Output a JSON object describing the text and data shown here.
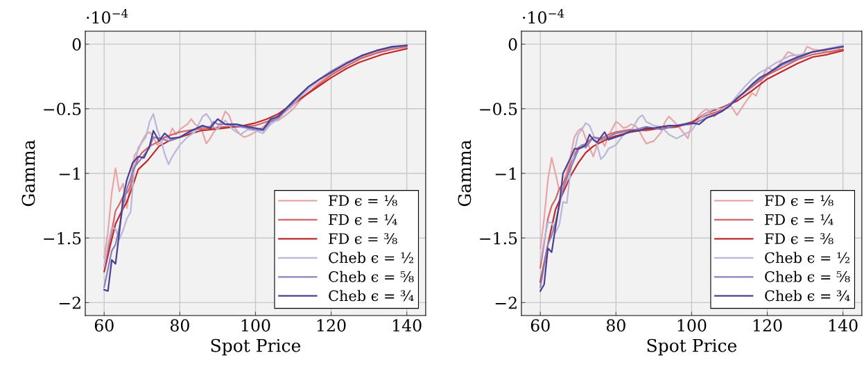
{
  "chart_data": [
    {
      "type": "line",
      "xlabel": "Spot Price",
      "ylabel": "Gamma",
      "annotations": [
        "·10$^{−4}$"
      ],
      "xlim": [
        55,
        145
      ],
      "ylim": [
        -2.1,
        0.1
      ],
      "xticks": [
        60,
        80,
        100,
        120,
        140
      ],
      "yticks": [
        {
          "value": -2,
          "label": "−2"
        },
        {
          "value": -1.5,
          "label": "−1.5"
        },
        {
          "value": -1,
          "label": "−1"
        },
        {
          "value": -0.5,
          "label": "−0.5"
        },
        0
      ],
      "grid": true,
      "legend": "lower right",
      "line_style": "solid",
      "marker": "none",
      "series": [
        {
          "name": "FD ϵ = ¹⁄₈",
          "color": "#e8a5a8",
          "x": [
            60,
            61,
            62,
            63,
            64,
            65,
            66,
            67,
            68,
            69,
            70,
            71,
            72,
            73,
            74,
            75,
            76,
            77,
            78,
            79,
            80,
            82,
            83,
            84,
            85,
            86,
            87,
            88,
            89,
            90,
            91,
            92,
            93,
            94,
            96,
            97,
            98,
            100,
            102,
            104,
            106,
            108,
            110,
            112,
            114,
            116,
            118,
            120,
            124,
            128,
            132,
            136,
            140
          ],
          "values": [
            -1.65,
            -1.45,
            -1.15,
            -0.96,
            -1.14,
            -1.08,
            -1.27,
            -1.05,
            -0.86,
            -0.82,
            -0.75,
            -0.7,
            -0.68,
            -0.72,
            -0.78,
            -0.76,
            -0.72,
            -0.73,
            -0.65,
            -0.7,
            -0.66,
            -0.62,
            -0.58,
            -0.62,
            -0.64,
            -0.68,
            -0.77,
            -0.73,
            -0.68,
            -0.64,
            -0.6,
            -0.52,
            -0.55,
            -0.63,
            -0.7,
            -0.72,
            -0.71,
            -0.68,
            -0.64,
            -0.6,
            -0.59,
            -0.55,
            -0.5,
            -0.43,
            -0.38,
            -0.32,
            -0.27,
            -0.23,
            -0.15,
            -0.1,
            -0.06,
            -0.035,
            -0.02
          ]
        },
        {
          "name": "FD ϵ = ¹⁄₄",
          "color": "#d46468",
          "x": [
            60,
            62,
            63,
            64,
            65,
            66,
            67,
            68,
            69,
            70,
            72,
            74,
            76,
            78,
            80,
            84,
            88,
            92,
            96,
            100,
            104,
            108,
            112,
            116,
            120,
            124,
            128,
            132,
            136,
            140
          ],
          "values": [
            -1.72,
            -1.45,
            -1.29,
            -1.24,
            -1.18,
            -1.15,
            -1.1,
            -0.96,
            -0.88,
            -0.84,
            -0.79,
            -0.76,
            -0.72,
            -0.7,
            -0.68,
            -0.66,
            -0.65,
            -0.64,
            -0.64,
            -0.63,
            -0.59,
            -0.52,
            -0.42,
            -0.33,
            -0.24,
            -0.17,
            -0.11,
            -0.07,
            -0.04,
            -0.02
          ]
        },
        {
          "name": "FD ϵ = ³⁄₈",
          "color": "#c0282a",
          "x": [
            60,
            61.5,
            63,
            64.5,
            66,
            67.5,
            69,
            71.5,
            74.5,
            77,
            80,
            85.5,
            91.5,
            96,
            100,
            103,
            106,
            112,
            116,
            120,
            124,
            127.5,
            133.5,
            140
          ],
          "values": [
            -1.76,
            -1.57,
            -1.39,
            -1.3,
            -1.22,
            -1.1,
            -0.97,
            -0.9,
            -0.79,
            -0.75,
            -0.72,
            -0.67,
            -0.65,
            -0.635,
            -0.61,
            -0.58,
            -0.54,
            -0.42,
            -0.34,
            -0.26,
            -0.19,
            -0.14,
            -0.08,
            -0.035
          ]
        },
        {
          "name": "Cheb ϵ = ¹⁄₂",
          "color": "#bab6da",
          "x": [
            60,
            61,
            62,
            63,
            64,
            65,
            66,
            67,
            68,
            69,
            70,
            71,
            72,
            73,
            74,
            75,
            76,
            77,
            78,
            80,
            82,
            84,
            86,
            87,
            88,
            89,
            90,
            92,
            94,
            96,
            98,
            100,
            102,
            104,
            106,
            108,
            110,
            112,
            114,
            116,
            118,
            120,
            124,
            128,
            132,
            136,
            140
          ],
          "values": [
            -1.72,
            -1.55,
            -1.42,
            -1.43,
            -1.51,
            -1.44,
            -1.35,
            -1.3,
            -0.94,
            -0.8,
            -0.76,
            -0.72,
            -0.6,
            -0.54,
            -0.66,
            -0.74,
            -0.85,
            -0.93,
            -0.87,
            -0.78,
            -0.72,
            -0.68,
            -0.56,
            -0.54,
            -0.58,
            -0.64,
            -0.66,
            -0.59,
            -0.66,
            -0.7,
            -0.66,
            -0.67,
            -0.69,
            -0.62,
            -0.58,
            -0.52,
            -0.47,
            -0.4,
            -0.35,
            -0.3,
            -0.25,
            -0.21,
            -0.14,
            -0.09,
            -0.05,
            -0.03,
            -0.01
          ]
        },
        {
          "name": "Cheb ϵ = ⁵⁄₈",
          "color": "#8a80bd",
          "x": [
            60,
            62,
            63,
            64,
            65,
            66,
            68,
            70,
            72,
            73,
            75,
            77,
            80,
            84,
            86,
            88,
            89,
            90,
            92,
            94,
            96,
            100,
            102,
            104,
            106,
            110,
            114,
            120,
            124,
            128,
            132,
            136,
            140
          ],
          "values": [
            -1.88,
            -1.6,
            -1.55,
            -1.42,
            -1.25,
            -1.12,
            -0.95,
            -0.88,
            -0.8,
            -0.72,
            -0.73,
            -0.75,
            -0.72,
            -0.66,
            -0.64,
            -0.64,
            -0.6,
            -0.62,
            -0.62,
            -0.63,
            -0.64,
            -0.66,
            -0.67,
            -0.6,
            -0.57,
            -0.45,
            -0.33,
            -0.21,
            -0.15,
            -0.09,
            -0.05,
            -0.025,
            -0.01
          ]
        },
        {
          "name": "Cheb ϵ = ³⁄₄",
          "color": "#4b3f92",
          "x": [
            60,
            61,
            62,
            63,
            64,
            65,
            66,
            67.5,
            69,
            70.5,
            72,
            73,
            74.5,
            76,
            77.5,
            80,
            83,
            86,
            88,
            90,
            92,
            95,
            98,
            100,
            102,
            104,
            106,
            110,
            114,
            117,
            120,
            124,
            128,
            132,
            136,
            140
          ],
          "values": [
            -1.9,
            -1.91,
            -1.67,
            -1.7,
            -1.46,
            -1.19,
            -1.05,
            -0.92,
            -0.87,
            -0.88,
            -0.79,
            -0.67,
            -0.75,
            -0.69,
            -0.73,
            -0.72,
            -0.67,
            -0.63,
            -0.65,
            -0.58,
            -0.62,
            -0.62,
            -0.64,
            -0.65,
            -0.66,
            -0.58,
            -0.56,
            -0.44,
            -0.33,
            -0.27,
            -0.22,
            -0.15,
            -0.09,
            -0.05,
            -0.02,
            -0.01
          ]
        }
      ]
    },
    {
      "type": "line",
      "xlabel": "Spot Price",
      "ylabel": "Gamma",
      "annotations": [
        "·10$^{−4}$"
      ],
      "xlim": [
        55,
        145
      ],
      "ylim": [
        -2.1,
        0.1
      ],
      "xticks": [
        60,
        80,
        100,
        120,
        140
      ],
      "yticks": [
        {
          "value": -2,
          "label": "−2"
        },
        {
          "value": -1.5,
          "label": "−1.5"
        },
        {
          "value": -1,
          "label": "−1"
        },
        {
          "value": -0.5,
          "label": "−0.5"
        },
        0
      ],
      "grid": true,
      "legend": "lower right",
      "line_style": "solid",
      "marker": "none",
      "series": [
        {
          "name": "FD ϵ = ¹⁄₈",
          "color": "#e8a5a8",
          "x": [
            60,
            61,
            62,
            63,
            64,
            65,
            66,
            67,
            68,
            69,
            70,
            71,
            72,
            73,
            74,
            75,
            76,
            77,
            78,
            80,
            81,
            82,
            83,
            84,
            85,
            86,
            87,
            88,
            90,
            92,
            93,
            94,
            96,
            98,
            99,
            100,
            102,
            103,
            104,
            106,
            108,
            110,
            112,
            114,
            116,
            117,
            118,
            119,
            120,
            122,
            124,
            125.5,
            127,
            129,
            130.5,
            132,
            134.5,
            137,
            139,
            140
          ],
          "values": [
            -1.58,
            -1.35,
            -1.05,
            -0.88,
            -1.0,
            -1.13,
            -1.09,
            -0.98,
            -0.86,
            -0.72,
            -0.67,
            -0.65,
            -0.73,
            -0.8,
            -0.87,
            -0.78,
            -0.73,
            -0.79,
            -0.71,
            -0.6,
            -0.62,
            -0.65,
            -0.64,
            -0.62,
            -0.63,
            -0.66,
            -0.72,
            -0.77,
            -0.75,
            -0.68,
            -0.6,
            -0.56,
            -0.62,
            -0.69,
            -0.73,
            -0.62,
            -0.55,
            -0.52,
            -0.5,
            -0.56,
            -0.5,
            -0.46,
            -0.55,
            -0.46,
            -0.38,
            -0.4,
            -0.33,
            -0.24,
            -0.18,
            -0.21,
            -0.12,
            -0.06,
            -0.08,
            -0.11,
            -0.02,
            -0.04,
            -0.05,
            -0.07,
            -0.04,
            -0.05
          ]
        },
        {
          "name": "FD ϵ = ¹⁄₄",
          "color": "#d46468",
          "x": [
            60,
            62,
            63,
            64,
            65,
            66,
            67,
            68,
            69,
            70,
            72,
            74,
            76,
            78,
            80,
            84,
            88,
            92,
            96,
            100,
            104,
            108,
            112,
            116,
            120,
            124,
            128,
            132,
            136,
            140
          ],
          "values": [
            -1.73,
            -1.35,
            -1.25,
            -1.2,
            -1.12,
            -1.08,
            -1.02,
            -0.92,
            -0.86,
            -0.8,
            -0.77,
            -0.72,
            -0.73,
            -0.7,
            -0.68,
            -0.66,
            -0.67,
            -0.65,
            -0.64,
            -0.6,
            -0.55,
            -0.51,
            -0.42,
            -0.33,
            -0.24,
            -0.18,
            -0.12,
            -0.08,
            -0.06,
            -0.04
          ]
        },
        {
          "name": "FD ϵ = ³⁄₈",
          "color": "#c0282a",
          "x": [
            60,
            62,
            64,
            66,
            68,
            70,
            72,
            74,
            76,
            78,
            80,
            84,
            88,
            92,
            96,
            100,
            104,
            108,
            112,
            116,
            120,
            124,
            128,
            132,
            136,
            140
          ],
          "values": [
            -1.84,
            -1.55,
            -1.28,
            -1.15,
            -1.02,
            -0.92,
            -0.84,
            -0.79,
            -0.76,
            -0.73,
            -0.71,
            -0.68,
            -0.66,
            -0.65,
            -0.64,
            -0.61,
            -0.53,
            -0.49,
            -0.44,
            -0.36,
            -0.27,
            -0.21,
            -0.15,
            -0.1,
            -0.08,
            -0.05
          ]
        },
        {
          "name": "Cheb ϵ = ¹⁄₂",
          "color": "#bab6da",
          "x": [
            60,
            61,
            62,
            63,
            64,
            65,
            66,
            67,
            68,
            69,
            70,
            71,
            72,
            73,
            74,
            75,
            76,
            77,
            78,
            80,
            82,
            84,
            86,
            87,
            88,
            90,
            92,
            94,
            96,
            98,
            100,
            102,
            104,
            106,
            108,
            110,
            112,
            114,
            116,
            118,
            120,
            122,
            124,
            126,
            128,
            132,
            136,
            140
          ],
          "values": [
            -1.68,
            -1.52,
            -1.38,
            -1.38,
            -1.46,
            -1.4,
            -1.22,
            -1.23,
            -0.98,
            -0.83,
            -0.7,
            -0.66,
            -0.61,
            -0.63,
            -0.7,
            -0.78,
            -0.89,
            -0.86,
            -0.81,
            -0.78,
            -0.7,
            -0.67,
            -0.57,
            -0.55,
            -0.6,
            -0.63,
            -0.64,
            -0.7,
            -0.73,
            -0.7,
            -0.67,
            -0.58,
            -0.53,
            -0.5,
            -0.5,
            -0.47,
            -0.4,
            -0.33,
            -0.27,
            -0.22,
            -0.19,
            -0.15,
            -0.12,
            -0.09,
            -0.085,
            -0.06,
            -0.035,
            -0.01
          ]
        },
        {
          "name": "Cheb ϵ = ⁵⁄₈",
          "color": "#8a80bd",
          "x": [
            60,
            62,
            63,
            64,
            66,
            68,
            70,
            71,
            72,
            74,
            76,
            78,
            80,
            84,
            88,
            92,
            96,
            100,
            104,
            108,
            112,
            116,
            120,
            124,
            128,
            132,
            136,
            140
          ],
          "values": [
            -1.88,
            -1.55,
            -1.48,
            -1.38,
            -1.12,
            -0.96,
            -0.82,
            -0.78,
            -0.8,
            -0.72,
            -0.74,
            -0.72,
            -0.69,
            -0.67,
            -0.64,
            -0.66,
            -0.63,
            -0.62,
            -0.57,
            -0.52,
            -0.42,
            -0.32,
            -0.23,
            -0.16,
            -0.11,
            -0.06,
            -0.04,
            -0.02
          ]
        },
        {
          "name": "Cheb ϵ = ³⁄₄",
          "color": "#4b3f92",
          "x": [
            60,
            61,
            62,
            63,
            64,
            65,
            66,
            67,
            68,
            69,
            70,
            71,
            72,
            73,
            74,
            75,
            76,
            77,
            78,
            80,
            82,
            84,
            86,
            88,
            90,
            92,
            94,
            96,
            98,
            100,
            102,
            104,
            106,
            108,
            110,
            112,
            114,
            116,
            118,
            120,
            122,
            124,
            128,
            132,
            136,
            140
          ],
          "values": [
            -1.91,
            -1.86,
            -1.58,
            -1.61,
            -1.42,
            -1.24,
            -1.0,
            -0.94,
            -0.88,
            -0.81,
            -0.81,
            -0.8,
            -0.78,
            -0.7,
            -0.74,
            -0.76,
            -0.72,
            -0.68,
            -0.74,
            -0.72,
            -0.7,
            -0.67,
            -0.67,
            -0.65,
            -0.65,
            -0.64,
            -0.63,
            -0.63,
            -0.62,
            -0.61,
            -0.62,
            -0.57,
            -0.55,
            -0.52,
            -0.48,
            -0.42,
            -0.37,
            -0.31,
            -0.26,
            -0.23,
            -0.19,
            -0.15,
            -0.1,
            -0.06,
            -0.04,
            -0.02
          ]
        }
      ]
    }
  ]
}
